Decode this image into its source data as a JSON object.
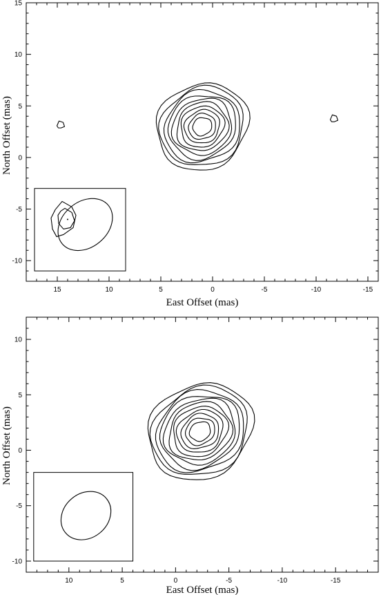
{
  "chart_data": [
    {
      "type": "contour",
      "title": "",
      "xlabel": "East Offset (mas)",
      "ylabel": "North Offset (mas)",
      "xlim": [
        18,
        -16
      ],
      "ylim": [
        -12,
        15
      ],
      "x_axis_reversed": true,
      "xticks": [
        15,
        10,
        5,
        0,
        -5,
        -10,
        -15
      ],
      "xtick_labels": [
        "15",
        "10",
        "5",
        "0",
        "-5",
        "-10",
        "-15"
      ],
      "yticks": [
        -10,
        -5,
        0,
        5,
        10,
        15
      ],
      "ytick_labels": [
        "-10",
        "-5",
        "0",
        "5",
        "10",
        "15"
      ],
      "main_source": {
        "center": [
          1.0,
          3.0
        ],
        "outer_extent_x": [
          6.5,
          -4.6
        ],
        "outer_extent_y": [
          -2.2,
          7.8
        ],
        "contour_levels": 10,
        "position_angle_deg": 30
      },
      "secondary_components": [
        {
          "center": [
            14.7,
            3.2
          ]
        },
        {
          "center": [
            -11.7,
            3.8
          ]
        }
      ],
      "beam_inset": {
        "box_x": [
          17.2,
          8.4
        ],
        "box_y": [
          -11.0,
          -3.0
        ],
        "beam_center": [
          12.3,
          -6.5
        ],
        "beam_semi_axes": [
          2.9,
          2.2
        ],
        "beam_position_angle_deg": 40
      }
    },
    {
      "type": "contour",
      "title": "",
      "xlabel": "East Offset (mas)",
      "ylabel": "North Offset (mas)",
      "xlim": [
        14,
        -19
      ],
      "ylim": [
        -11,
        12
      ],
      "x_axis_reversed": true,
      "xticks": [
        10,
        5,
        0,
        -5,
        -10,
        -15
      ],
      "xtick_labels": [
        "10",
        "5",
        "0",
        "-5",
        "-10",
        "-15"
      ],
      "yticks": [
        -10,
        -5,
        0,
        5,
        10
      ],
      "ytick_labels": [
        "-10",
        "-5",
        "0",
        "5",
        "10"
      ],
      "main_source": {
        "center": [
          -2.3,
          1.7
        ],
        "outer_extent_x": [
          3.6,
          -8.8
        ],
        "outer_extent_y": [
          -3.7,
          6.5
        ],
        "contour_levels": 11,
        "position_angle_deg": 30
      },
      "beam_inset": {
        "box_x": [
          13.3,
          4.0
        ],
        "box_y": [
          -10.0,
          -2.0
        ],
        "beam_center": [
          8.4,
          -5.9
        ],
        "beam_semi_axes": [
          2.5,
          2.0
        ],
        "beam_position_angle_deg": 40
      }
    }
  ]
}
